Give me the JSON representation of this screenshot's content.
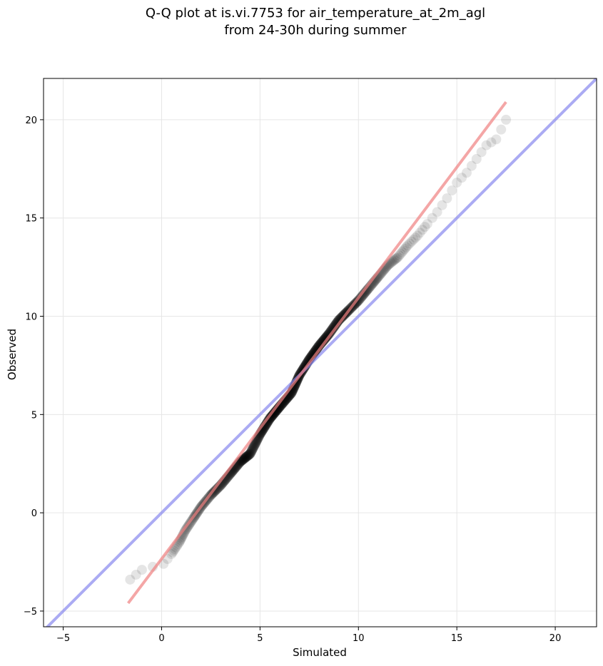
{
  "chart_data": {
    "type": "scatter",
    "title": "Q-Q plot at is.vi.7753 for air_temperature_at_2m_agl\nfrom 24-30h during summer",
    "xlabel": "Simulated",
    "ylabel": "Observed",
    "xlim": [
      -6,
      22.1
    ],
    "ylim": [
      -5.8,
      22.1
    ],
    "xticks": [
      -5,
      0,
      5,
      10,
      15,
      20
    ],
    "yticks": [
      -5,
      0,
      5,
      10,
      15,
      20
    ],
    "grid": true,
    "legend": "none",
    "quantile_curve": [
      [
        -1.6,
        -3.4
      ],
      [
        -1.0,
        -2.9
      ],
      [
        0.1,
        -2.6
      ],
      [
        0.5,
        -2.1
      ],
      [
        0.9,
        -1.5
      ],
      [
        1.2,
        -0.9
      ],
      [
        1.6,
        -0.3
      ],
      [
        2.0,
        0.3
      ],
      [
        2.5,
        0.9
      ],
      [
        3.0,
        1.4
      ],
      [
        3.5,
        2.0
      ],
      [
        4.0,
        2.6
      ],
      [
        4.5,
        3.0
      ],
      [
        5.0,
        4.0
      ],
      [
        5.5,
        4.8
      ],
      [
        6.0,
        5.4
      ],
      [
        6.6,
        6.1
      ],
      [
        7.0,
        7.0
      ],
      [
        7.5,
        7.8
      ],
      [
        8.0,
        8.5
      ],
      [
        8.5,
        9.1
      ],
      [
        9.0,
        9.8
      ],
      [
        9.5,
        10.3
      ],
      [
        10.0,
        10.8
      ],
      [
        10.5,
        11.4
      ],
      [
        11.0,
        12.0
      ],
      [
        11.5,
        12.6
      ],
      [
        12.0,
        13.0
      ],
      [
        12.5,
        13.6
      ],
      [
        13.0,
        14.1
      ],
      [
        13.5,
        14.7
      ],
      [
        14.0,
        15.3
      ],
      [
        14.5,
        16.0
      ],
      [
        15.0,
        16.8
      ],
      [
        15.5,
        17.3
      ],
      [
        16.0,
        18.0
      ],
      [
        16.5,
        18.7
      ],
      [
        17.0,
        19.0
      ],
      [
        17.5,
        20.0
      ]
    ],
    "series": [
      {
        "type": "reference_line",
        "color": "#8888ee",
        "points": [
          [
            -6,
            -6
          ],
          [
            22.1,
            22.1
          ]
        ]
      },
      {
        "type": "fit_line",
        "color": "#f08080",
        "points": [
          [
            -1.7,
            -4.6
          ],
          [
            17.5,
            20.9
          ]
        ]
      }
    ],
    "point_color": "#000000"
  }
}
